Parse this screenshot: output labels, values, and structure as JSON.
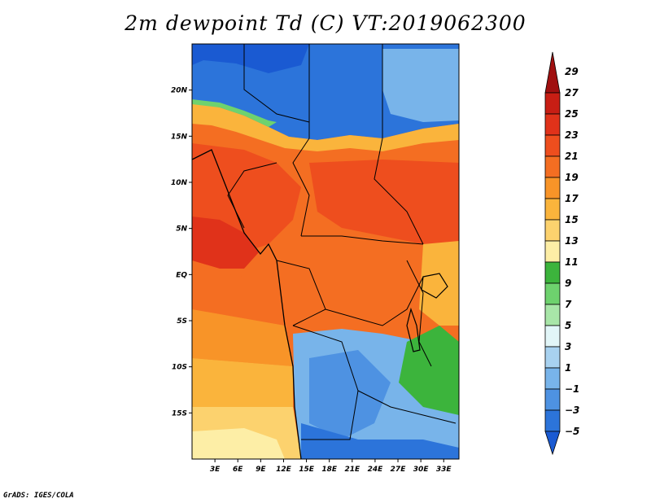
{
  "title": "2m dewpoint Td (C) VT:2019062300",
  "credit": "GrADS: IGES/COLA",
  "map": {
    "lat_labels": [
      "20N",
      "15N",
      "10N",
      "5N",
      "EQ",
      "5S",
      "10S",
      "15S"
    ],
    "lat_values": [
      20,
      15,
      10,
      5,
      0,
      -5,
      -10,
      -15
    ],
    "lon_labels": [
      "3E",
      "6E",
      "9E",
      "12E",
      "15E",
      "18E",
      "21E",
      "24E",
      "27E",
      "30E",
      "33E"
    ],
    "lon_values": [
      3,
      6,
      9,
      12,
      15,
      18,
      21,
      24,
      27,
      30,
      33
    ],
    "lon_range": [
      0,
      35
    ],
    "lat_range": [
      -20,
      25
    ]
  },
  "legend": {
    "labels": [
      "29",
      "27",
      "25",
      "23",
      "21",
      "19",
      "17",
      "15",
      "13",
      "11",
      "9",
      "7",
      "5",
      "3",
      "1",
      "−1",
      "−3",
      "−5"
    ],
    "colors": [
      "#a01010",
      "#c81e14",
      "#e0321a",
      "#ee4e1e",
      "#f46e22",
      "#f89428",
      "#fab43c",
      "#fcd26e",
      "#fdeea6",
      "#3cb43c",
      "#6ed26e",
      "#a8e6a8",
      "#e2f6f8",
      "#a8d2f0",
      "#78b4ea",
      "#4e92e2",
      "#2c74da",
      "#1a5ad2"
    ]
  }
}
